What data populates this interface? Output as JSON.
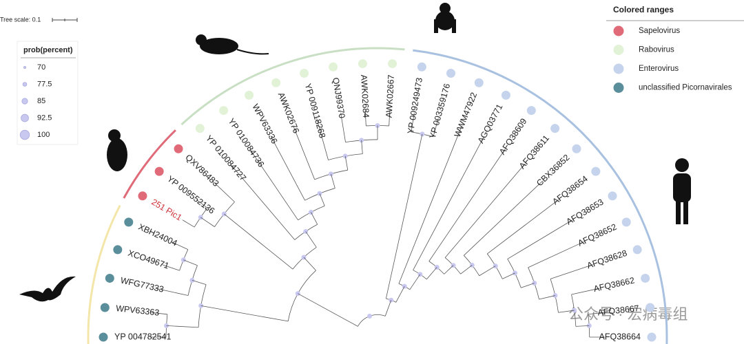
{
  "tree_scale": {
    "label": "Tree scale: 0.1"
  },
  "size_legend": {
    "title": "prob(percent)",
    "items": [
      "70",
      "77.5",
      "85",
      "92.5",
      "100"
    ]
  },
  "range_legend": {
    "title": "Colored ranges",
    "items": [
      {
        "label": "Sapelovirus",
        "color": "#e06a78"
      },
      {
        "label": "Rabovirus",
        "color": "#e2f2d6"
      },
      {
        "label": "Enterovirus",
        "color": "#c5d3ec"
      },
      {
        "label": "unclassified Picornavirales",
        "color": "#5a8e9a"
      }
    ]
  },
  "leaves": [
    {
      "label": "YP 004782541",
      "group": 3
    },
    {
      "label": "WPV63363",
      "group": 3
    },
    {
      "label": "WFG77333",
      "group": 3
    },
    {
      "label": "XCO49671",
      "group": 3
    },
    {
      "label": "XBH24004",
      "group": 3
    },
    {
      "label": "251 Pic1",
      "group": 0,
      "label_color": "#d0323c"
    },
    {
      "label": "YP 009552136",
      "group": 0
    },
    {
      "label": "QXV86483",
      "group": 0
    },
    {
      "label": "YP 010084727",
      "group": 1
    },
    {
      "label": "YP 010084736",
      "group": 1
    },
    {
      "label": "WPV63336",
      "group": 1
    },
    {
      "label": "AWK02676",
      "group": 1
    },
    {
      "label": "YP 009118268",
      "group": 1
    },
    {
      "label": "QNJ99370",
      "group": 1
    },
    {
      "label": "AWK02684",
      "group": 1
    },
    {
      "label": "AWK02667",
      "group": 1
    },
    {
      "label": "YP 009249473",
      "group": 2
    },
    {
      "label": "YP 003359176",
      "group": 2
    },
    {
      "label": "WWM47922",
      "group": 2
    },
    {
      "label": "AGQ03771",
      "group": 2
    },
    {
      "label": "AFQ38609",
      "group": 2
    },
    {
      "label": "AFQ38611",
      "group": 2
    },
    {
      "label": "CBX36852",
      "group": 2
    },
    {
      "label": "AFQ38654",
      "group": 2
    },
    {
      "label": "AFQ38653",
      "group": 2
    },
    {
      "label": "AFQ38652",
      "group": 2
    },
    {
      "label": "AFQ38628",
      "group": 2
    },
    {
      "label": "AFQ38662",
      "group": 2
    },
    {
      "label": "AFQ38667",
      "group": 2
    },
    {
      "label": "AFQ38664",
      "group": 2
    }
  ],
  "watermark": "公众号 · 宏病毒组"
}
